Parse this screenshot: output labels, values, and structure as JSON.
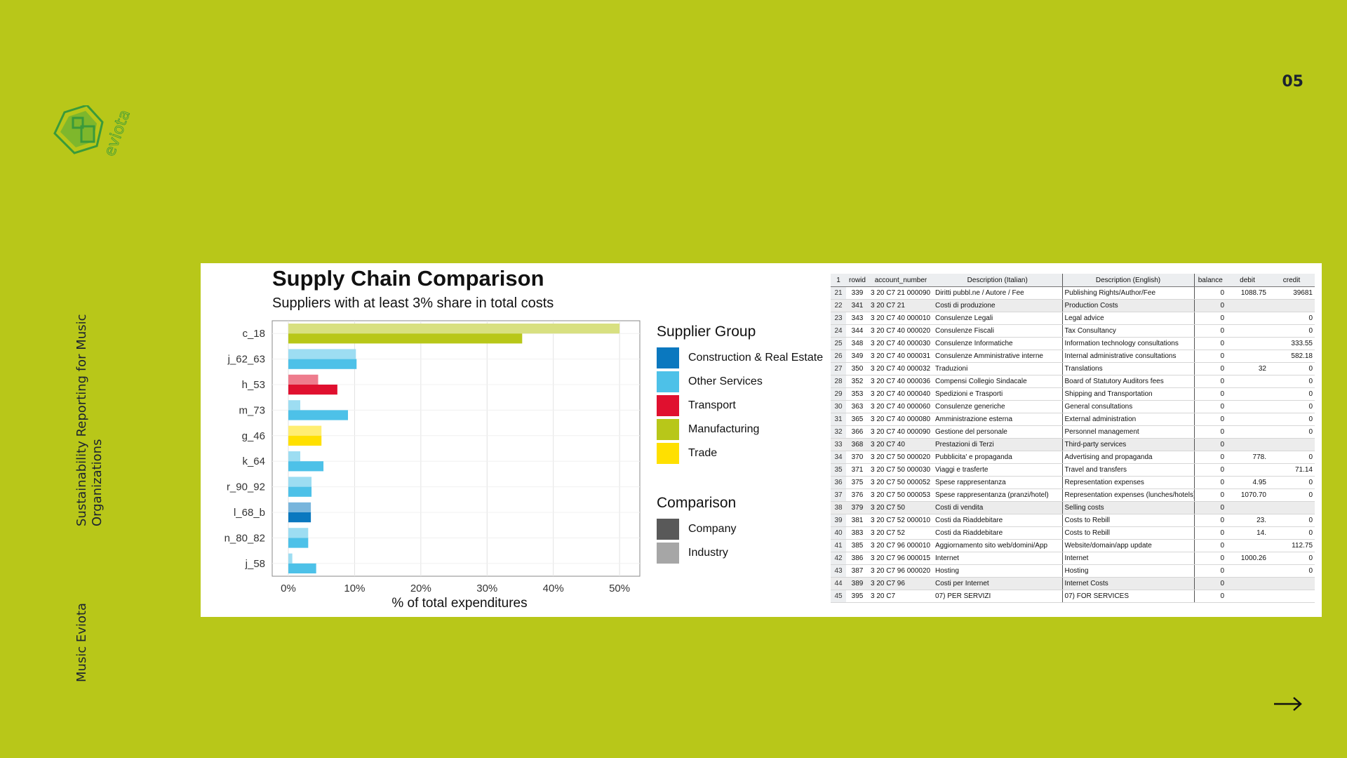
{
  "page_number": "05",
  "sidebar": {
    "title": "Sustainability Reporting for Music Organizations",
    "brand": "Music Eviota"
  },
  "logo": {
    "text": "eviota",
    "icon": "eviota-hex-logo-icon"
  },
  "nav": {
    "next_icon": "arrow-right-icon"
  },
  "colors": {
    "background": "#b8c719",
    "construction": "#0a78bf",
    "other_services": "#4dc1e8",
    "transport": "#e0102f",
    "manufacturing": "#b8c719",
    "trade": "#ffe000",
    "company": "#595959",
    "industry": "#a6a6a6"
  },
  "chart_data": {
    "type": "bar",
    "orientation": "horizontal",
    "title": "Supply Chain Comparison",
    "subtitle": "Suppliers with at least 3% share in total costs",
    "xlabel": "% of total expenditures",
    "ylabel": "",
    "xlim": [
      0,
      52
    ],
    "x_ticks": [
      "0%",
      "10%",
      "20%",
      "30%",
      "40%",
      "50%"
    ],
    "x_tick_values": [
      0,
      10,
      20,
      30,
      40,
      50
    ],
    "grid": true,
    "legend_position": "right",
    "categories": [
      "c_18",
      "j_62_63",
      "h_53",
      "m_73",
      "g_46",
      "k_64",
      "r_90_92",
      "l_68_b",
      "n_80_82",
      "j_58"
    ],
    "group_of_category": [
      "manufacturing",
      "other_services",
      "transport",
      "other_services",
      "trade",
      "other_services",
      "other_services",
      "construction",
      "other_services",
      "other_services"
    ],
    "series": [
      {
        "name": "Industry",
        "values": [
          50,
          10.2,
          4.5,
          1.8,
          5.0,
          1.8,
          3.5,
          3.4,
          3.0,
          0.6
        ]
      },
      {
        "name": "Company",
        "values": [
          35.3,
          10.3,
          7.4,
          9.0,
          5.0,
          5.3,
          3.5,
          3.4,
          3.0,
          4.2
        ]
      }
    ],
    "legend": {
      "supplier_group_title": "Supplier Group",
      "supplier_groups": [
        {
          "key": "construction",
          "label": "Construction & Real Estate"
        },
        {
          "key": "other_services",
          "label": "Other Services"
        },
        {
          "key": "transport",
          "label": "Transport"
        },
        {
          "key": "manufacturing",
          "label": "Manufacturing"
        },
        {
          "key": "trade",
          "label": "Trade"
        }
      ],
      "comparison_title": "Comparison",
      "comparison": [
        {
          "key": "company",
          "label": "Company"
        },
        {
          "key": "industry",
          "label": "Industry"
        }
      ]
    }
  },
  "sheet": {
    "columns": [
      "1",
      "rowid",
      "account_number",
      "Description (Italian)",
      "Description (English)",
      "balance",
      "debit",
      "credit"
    ],
    "rows": [
      {
        "i": "21",
        "rowid": "339",
        "acc": "3 20 C7 21 000090",
        "it": "Diritti pubbl.ne / Autore / Fee",
        "en": "Publishing Rights/Author/Fee",
        "bal": "0",
        "debit": "1088.75",
        "credit": "39681"
      },
      {
        "i": "22",
        "rowid": "341",
        "acc": "3 20 C7 21",
        "it": "Costi di produzione",
        "en": "Production Costs",
        "bal": "0",
        "debit": "",
        "credit": ""
      },
      {
        "i": "23",
        "rowid": "343",
        "acc": "3 20 C7 40 000010",
        "it": "Consulenze Legali",
        "en": "Legal advice",
        "bal": "0",
        "debit": "",
        "credit": "0"
      },
      {
        "i": "24",
        "rowid": "344",
        "acc": "3 20 C7 40 000020",
        "it": "Consulenze Fiscali",
        "en": "Tax Consultancy",
        "bal": "0",
        "debit": "",
        "credit": "0"
      },
      {
        "i": "25",
        "rowid": "348",
        "acc": "3 20 C7 40 000030",
        "it": "Consulenze Informatiche",
        "en": "Information technology consultations",
        "bal": "0",
        "debit": "",
        "credit": "333.55"
      },
      {
        "i": "26",
        "rowid": "349",
        "acc": "3 20 C7 40 000031",
        "it": "Consulenze Amministrative interne",
        "en": "Internal administrative consultations",
        "bal": "0",
        "debit": "",
        "credit": "582.18"
      },
      {
        "i": "27",
        "rowid": "350",
        "acc": "3 20 C7 40 000032",
        "it": "Traduzioni",
        "en": "Translations",
        "bal": "0",
        "debit": "32",
        "credit": "0"
      },
      {
        "i": "28",
        "rowid": "352",
        "acc": "3 20 C7 40 000036",
        "it": "Compensi Collegio Sindacale",
        "en": "Board of Statutory Auditors fees",
        "bal": "0",
        "debit": "",
        "credit": "0"
      },
      {
        "i": "29",
        "rowid": "353",
        "acc": "3 20 C7 40 000040",
        "it": "Spedizioni e Trasporti",
        "en": "Shipping and Transportation",
        "bal": "0",
        "debit": "",
        "credit": "0"
      },
      {
        "i": "30",
        "rowid": "363",
        "acc": "3 20 C7 40 000060",
        "it": "Consulenze generiche",
        "en": "General consultations",
        "bal": "0",
        "debit": "",
        "credit": "0"
      },
      {
        "i": "31",
        "rowid": "365",
        "acc": "3 20 C7 40 000080",
        "it": "Amministrazione esterna",
        "en": "External administration",
        "bal": "0",
        "debit": "",
        "credit": "0"
      },
      {
        "i": "32",
        "rowid": "366",
        "acc": "3 20 C7 40 000090",
        "it": "Gestione del personale",
        "en": "Personnel management",
        "bal": "0",
        "debit": "",
        "credit": "0"
      },
      {
        "i": "33",
        "rowid": "368",
        "acc": "3 20 C7 40",
        "it": "Prestazioni di Terzi",
        "en": "Third-party services",
        "bal": "0",
        "debit": "",
        "credit": ""
      },
      {
        "i": "34",
        "rowid": "370",
        "acc": "3 20 C7 50 000020",
        "it": "Pubblicita' e propaganda",
        "en": "Advertising and propaganda",
        "bal": "0",
        "debit": "778.",
        "credit": "0"
      },
      {
        "i": "35",
        "rowid": "371",
        "acc": "3 20 C7 50 000030",
        "it": "Viaggi e trasferte",
        "en": "Travel and transfers",
        "bal": "0",
        "debit": "",
        "credit": "71.14"
      },
      {
        "i": "36",
        "rowid": "375",
        "acc": "3 20 C7 50 000052",
        "it": "Spese rappresentanza",
        "en": "Representation expenses",
        "bal": "0",
        "debit": "4.95",
        "credit": "0"
      },
      {
        "i": "37",
        "rowid": "376",
        "acc": "3 20 C7 50 000053",
        "it": "Spese rappresentanza (pranzi/hotel)",
        "en": "Representation expenses (lunches/hotels)",
        "bal": "0",
        "debit": "1070.70",
        "credit": "0"
      },
      {
        "i": "38",
        "rowid": "379",
        "acc": "3 20 C7 50",
        "it": "Costi di vendita",
        "en": "Selling costs",
        "bal": "0",
        "debit": "",
        "credit": ""
      },
      {
        "i": "39",
        "rowid": "381",
        "acc": "3 20 C7 52 000010",
        "it": "Costi da Riaddebitare",
        "en": "Costs to Rebill",
        "bal": "0",
        "debit": "23.",
        "credit": "0"
      },
      {
        "i": "40",
        "rowid": "383",
        "acc": "3 20 C7 52",
        "it": "Costi da Riaddebitare",
        "en": "Costs to Rebill",
        "bal": "0",
        "debit": "14.",
        "credit": "0"
      },
      {
        "i": "41",
        "rowid": "385",
        "acc": "3 20 C7 96 000010",
        "it": "Aggiornamento sito web/domini/App",
        "en": "Website/domain/app update",
        "bal": "0",
        "debit": "",
        "credit": "112.75"
      },
      {
        "i": "42",
        "rowid": "386",
        "acc": "3 20 C7 96 000015",
        "it": "Internet",
        "en": "Internet",
        "bal": "0",
        "debit": "1000.26",
        "credit": "0"
      },
      {
        "i": "43",
        "rowid": "387",
        "acc": "3 20 C7 96 000020",
        "it": "Hosting",
        "en": "Hosting",
        "bal": "0",
        "debit": "",
        "credit": "0"
      },
      {
        "i": "44",
        "rowid": "389",
        "acc": "3 20 C7 96",
        "it": "Costi per Internet",
        "en": "Internet Costs",
        "bal": "0",
        "debit": "",
        "credit": ""
      },
      {
        "i": "45",
        "rowid": "395",
        "acc": "3 20 C7",
        "it": "07) PER SERVIZI",
        "en": "07) FOR SERVICES",
        "bal": "0",
        "debit": "",
        "credit": ""
      }
    ],
    "shaded_rows": [
      "22",
      "33",
      "38",
      "44"
    ]
  }
}
